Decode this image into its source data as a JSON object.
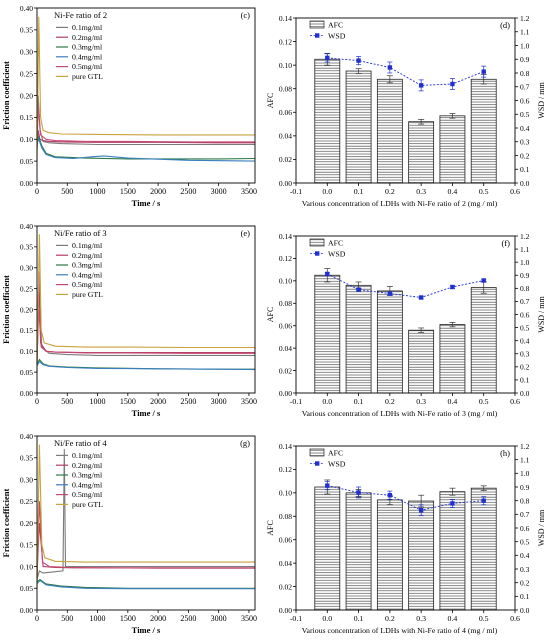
{
  "colors": {
    "c01": "#7b7b7b",
    "c02": "#b43a6a",
    "c03": "#2f7a4a",
    "c04": "#3a7fbf",
    "c05": "#c34a6e",
    "gtl": "#c8a23a",
    "wsd": "#1f2fd0",
    "axis": "#000000"
  },
  "chart_data": [
    {
      "id": "c",
      "type": "line",
      "panel_label": "(c)",
      "legend_title": "Ni-Fe ratio of 2",
      "xlabel": "Time / s",
      "ylabel": "Friction coefficient",
      "xlim": [
        0,
        3600
      ],
      "ylim": [
        0,
        0.4
      ],
      "xticks": [
        "0",
        "500",
        "1000",
        "1500",
        "2000",
        "2500",
        "3000",
        "3500"
      ],
      "yticks": [
        "0.00",
        "0.05",
        "0.10",
        "0.15",
        "0.20",
        "0.25",
        "0.30",
        "0.35",
        "0.40"
      ],
      "series": [
        {
          "name": "0.1mg/ml",
          "color": "c01",
          "x": [
            0,
            20,
            50,
            100,
            200,
            400,
            1000,
            2000,
            3000,
            3600
          ],
          "y": [
            0.08,
            0.2,
            0.12,
            0.095,
            0.092,
            0.09,
            0.088,
            0.088,
            0.088,
            0.088
          ]
        },
        {
          "name": "0.2mg/ml",
          "color": "c02",
          "x": [
            0,
            20,
            50,
            100,
            200,
            400,
            1000,
            2000,
            3000,
            3600
          ],
          "y": [
            0.08,
            0.12,
            0.1,
            0.097,
            0.095,
            0.094,
            0.093,
            0.093,
            0.092,
            0.092
          ]
        },
        {
          "name": "0.3mg/ml",
          "color": "c03",
          "x": [
            0,
            30,
            80,
            150,
            300,
            800,
            1500,
            2500,
            3000,
            3600
          ],
          "y": [
            0.09,
            0.105,
            0.085,
            0.068,
            0.06,
            0.057,
            0.055,
            0.055,
            0.055,
            0.056
          ]
        },
        {
          "name": "0.4mg/ml",
          "color": "c04",
          "x": [
            0,
            30,
            80,
            150,
            300,
            600,
            900,
            1100,
            1500,
            2500,
            3600
          ],
          "y": [
            0.09,
            0.1,
            0.08,
            0.065,
            0.058,
            0.056,
            0.06,
            0.062,
            0.057,
            0.052,
            0.05
          ]
        },
        {
          "name": "0.5mg/ml",
          "color": "c05",
          "x": [
            0,
            20,
            60,
            150,
            300,
            800,
            1500,
            2500,
            3600
          ],
          "y": [
            0.08,
            0.18,
            0.11,
            0.1,
            0.097,
            0.095,
            0.095,
            0.094,
            0.094
          ]
        },
        {
          "name": "pure GTL",
          "color": "gtl",
          "x": [
            0,
            30,
            60,
            100,
            200,
            400,
            1000,
            2000,
            3000,
            3600
          ],
          "y": [
            0.05,
            0.38,
            0.15,
            0.12,
            0.115,
            0.112,
            0.111,
            0.11,
            0.11,
            0.11
          ]
        }
      ]
    },
    {
      "id": "d",
      "type": "bar",
      "panel_label": "(d)",
      "xlabel": "Various concentration of LDHs with Ni-Fe ratio of 2 (mg / ml)",
      "ylabel": "AFC",
      "y2label": "WSD / mm",
      "xlim": [
        -0.1,
        0.6
      ],
      "ylim": [
        0,
        0.14
      ],
      "y2lim": [
        0,
        1.2
      ],
      "xticks": [
        "-0.1",
        "0.0",
        "0.1",
        "0.2",
        "0.3",
        "0.4",
        "0.5",
        "0.6"
      ],
      "yticks": [
        "0.00",
        "0.02",
        "0.04",
        "0.06",
        "0.08",
        "0.10",
        "0.12",
        "0.14"
      ],
      "y2ticks": [
        "0.0",
        "0.1",
        "0.2",
        "0.3",
        "0.4",
        "0.5",
        "0.6",
        "0.7",
        "0.8",
        "0.9",
        "1.0",
        "1.1",
        "1.2"
      ],
      "legend": [
        "AFC",
        "WSD"
      ],
      "x": [
        0.0,
        0.1,
        0.2,
        0.3,
        0.4,
        0.5
      ],
      "afc": [
        0.105,
        0.095,
        0.088,
        0.052,
        0.057,
        0.088
      ],
      "afc_err": [
        0.005,
        0.002,
        0.003,
        0.002,
        0.002,
        0.004
      ],
      "wsd": [
        0.91,
        0.89,
        0.84,
        0.71,
        0.72,
        0.81
      ],
      "wsd_err": [
        0.03,
        0.03,
        0.04,
        0.04,
        0.04,
        0.04
      ]
    },
    {
      "id": "e",
      "type": "line",
      "panel_label": "(e)",
      "legend_title": "Ni/Fe ratio of 3",
      "xlabel": "Time / s",
      "ylabel": "Friction coefficient",
      "xlim": [
        0,
        3600
      ],
      "ylim": [
        0,
        0.4
      ],
      "xticks": [
        "0",
        "500",
        "1000",
        "1500",
        "2000",
        "2500",
        "3000",
        "3500"
      ],
      "yticks": [
        "0.00",
        "0.05",
        "0.10",
        "0.15",
        "0.20",
        "0.25",
        "0.30",
        "0.35",
        "0.40"
      ],
      "series": [
        {
          "name": "0.1mg/ml",
          "color": "c01",
          "x": [
            0,
            30,
            80,
            200,
            500,
            1000,
            2000,
            3000,
            3600
          ],
          "y": [
            0.07,
            0.25,
            0.11,
            0.095,
            0.092,
            0.09,
            0.09,
            0.09,
            0.09
          ]
        },
        {
          "name": "0.2mg/ml",
          "color": "c02",
          "x": [
            0,
            30,
            60,
            150,
            300,
            800,
            1500,
            2500,
            3600
          ],
          "y": [
            0.07,
            0.29,
            0.12,
            0.1,
            0.098,
            0.097,
            0.097,
            0.097,
            0.097
          ]
        },
        {
          "name": "0.3mg/ml",
          "color": "c03",
          "x": [
            0,
            40,
            100,
            200,
            500,
            1000,
            2000,
            3000,
            3600
          ],
          "y": [
            0.07,
            0.08,
            0.07,
            0.065,
            0.062,
            0.06,
            0.058,
            0.057,
            0.057
          ]
        },
        {
          "name": "0.4mg/ml",
          "color": "c04",
          "x": [
            0,
            40,
            100,
            200,
            500,
            1000,
            2000,
            3000,
            3600
          ],
          "y": [
            0.065,
            0.075,
            0.068,
            0.064,
            0.061,
            0.059,
            0.058,
            0.057,
            0.056
          ]
        },
        {
          "name": "0.5mg/ml",
          "color": "c05",
          "x": [
            0,
            30,
            70,
            150,
            300,
            800,
            1500,
            2500,
            3600
          ],
          "y": [
            0.08,
            0.2,
            0.11,
            0.1,
            0.098,
            0.096,
            0.096,
            0.095,
            0.095
          ]
        },
        {
          "name": "pure GTL",
          "color": "gtl",
          "x": [
            0,
            40,
            70,
            120,
            300,
            800,
            1500,
            2500,
            3600
          ],
          "y": [
            0.05,
            0.38,
            0.15,
            0.12,
            0.112,
            0.11,
            0.11,
            0.109,
            0.109
          ]
        }
      ]
    },
    {
      "id": "f",
      "type": "bar",
      "panel_label": "(f)",
      "xlabel": "Various concentration of LDHs with Ni-Fe ratio of 3 (mg / ml)",
      "ylabel": "AFC",
      "y2label": "WSD / mm",
      "xlim": [
        -0.1,
        0.6
      ],
      "ylim": [
        0,
        0.14
      ],
      "y2lim": [
        0,
        1.2
      ],
      "xticks": [
        "-0.1",
        "0.0",
        "0.1",
        "0.2",
        "0.3",
        "0.4",
        "0.5",
        "0.6"
      ],
      "yticks": [
        "0.00",
        "0.02",
        "0.04",
        "0.06",
        "0.08",
        "0.10",
        "0.12",
        "0.14"
      ],
      "y2ticks": [
        "0.0",
        "0.1",
        "0.2",
        "0.3",
        "0.4",
        "0.5",
        "0.6",
        "0.7",
        "0.8",
        "0.9",
        "1.0",
        "1.1",
        "1.2"
      ],
      "legend": [
        "AFC",
        "WSD"
      ],
      "x": [
        0.0,
        0.1,
        0.2,
        0.3,
        0.4,
        0.5
      ],
      "afc": [
        0.105,
        0.096,
        0.091,
        0.056,
        0.061,
        0.094
      ],
      "afc_err": [
        0.006,
        0.003,
        0.004,
        0.002,
        0.002,
        0.005
      ],
      "wsd": [
        0.91,
        0.79,
        0.76,
        0.73,
        0.81,
        0.86
      ],
      "wsd_err": [
        0.01,
        0.01,
        0.01,
        0.01,
        0.01,
        0.01
      ]
    },
    {
      "id": "g",
      "type": "line",
      "panel_label": "(g)",
      "legend_title": "Ni/Fe ratio of 4",
      "xlabel": "Time / s",
      "ylabel": "Friction coefficient",
      "xlim": [
        0,
        3600
      ],
      "ylim": [
        0,
        0.4
      ],
      "xticks": [
        "0",
        "500",
        "1000",
        "1500",
        "2000",
        "2500",
        "3000",
        "3500"
      ],
      "yticks": [
        "0.00",
        "0.05",
        "0.10",
        "0.15",
        "0.20",
        "0.25",
        "0.30",
        "0.35",
        "0.40"
      ],
      "series": [
        {
          "name": "0.1mg/ml",
          "color": "c01",
          "x": [
            0,
            40,
            100,
            300,
            430,
            450,
            470,
            600,
            1000,
            2000,
            3000,
            3600
          ],
          "y": [
            0.07,
            0.09,
            0.085,
            0.088,
            0.09,
            0.37,
            0.1,
            0.1,
            0.1,
            0.1,
            0.1,
            0.1
          ]
        },
        {
          "name": "0.2mg/ml",
          "color": "c02",
          "x": [
            0,
            40,
            100,
            300,
            600,
            1000,
            2000,
            3000,
            3600
          ],
          "y": [
            0.08,
            0.2,
            0.1,
            0.098,
            0.097,
            0.097,
            0.097,
            0.097,
            0.097
          ]
        },
        {
          "name": "0.3mg/ml",
          "color": "c03",
          "x": [
            0,
            50,
            150,
            400,
            800,
            1500,
            2500,
            3600
          ],
          "y": [
            0.065,
            0.07,
            0.06,
            0.055,
            0.052,
            0.05,
            0.05,
            0.05
          ]
        },
        {
          "name": "0.4mg/ml",
          "color": "c04",
          "x": [
            0,
            50,
            150,
            400,
            800,
            1500,
            2500,
            3600
          ],
          "y": [
            0.06,
            0.068,
            0.058,
            0.053,
            0.05,
            0.049,
            0.049,
            0.049
          ]
        },
        {
          "name": "0.5mg/ml",
          "color": "c05",
          "x": [
            0,
            40,
            90,
            200,
            500,
            1000,
            2000,
            3000,
            3600
          ],
          "y": [
            0.08,
            0.25,
            0.11,
            0.1,
            0.098,
            0.097,
            0.096,
            0.096,
            0.096
          ]
        },
        {
          "name": "pure GTL",
          "color": "gtl",
          "x": [
            0,
            40,
            80,
            130,
            300,
            800,
            1500,
            2500,
            3600
          ],
          "y": [
            0.05,
            0.38,
            0.15,
            0.12,
            0.112,
            0.11,
            0.11,
            0.11,
            0.11
          ]
        }
      ]
    },
    {
      "id": "h",
      "type": "bar",
      "panel_label": "(h)",
      "xlabel": "Various concentration of LDHs with Ni-Fe ratio of 4 (mg / ml)",
      "ylabel": "AFC",
      "y2label": "WSD / mm",
      "xlim": [
        -0.1,
        0.6
      ],
      "ylim": [
        0,
        0.14
      ],
      "y2lim": [
        0,
        1.2
      ],
      "xticks": [
        "-0.1",
        "0.0",
        "0.1",
        "0.2",
        "0.3",
        "0.4",
        "0.5",
        "0.6"
      ],
      "yticks": [
        "0.00",
        "0.02",
        "0.04",
        "0.06",
        "0.08",
        "0.10",
        "0.12",
        "0.14"
      ],
      "y2ticks": [
        "0.0",
        "0.1",
        "0.2",
        "0.3",
        "0.4",
        "0.5",
        "0.6",
        "0.7",
        "0.8",
        "0.9",
        "1.0",
        "1.1",
        "1.2"
      ],
      "legend": [
        "AFC",
        "WSD"
      ],
      "x": [
        0.0,
        0.1,
        0.2,
        0.3,
        0.4,
        0.5
      ],
      "afc": [
        0.105,
        0.1,
        0.094,
        0.093,
        0.101,
        0.104
      ],
      "afc_err": [
        0.006,
        0.003,
        0.004,
        0.005,
        0.003,
        0.002
      ],
      "wsd": [
        0.91,
        0.86,
        0.84,
        0.73,
        0.78,
        0.8
      ],
      "wsd_err": [
        0.03,
        0.04,
        0.03,
        0.04,
        0.03,
        0.03
      ]
    }
  ]
}
